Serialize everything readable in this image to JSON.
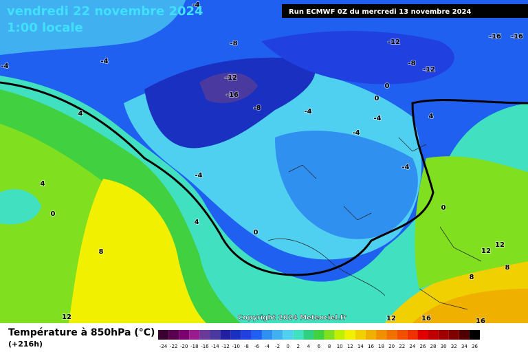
{
  "header": {
    "title": "vendredi 22 novembre 2024",
    "time": "1:00 locale",
    "run": "Run ECMWF 0Z du mercredi 13 novembre 2024"
  },
  "copyright": "Copyright 2024 Meteociel.fr",
  "legend": {
    "title": "Température à 850hPa (°C)",
    "lead": "(+216h)",
    "scale": [
      {
        "value": -24,
        "color": "#3a0030"
      },
      {
        "value": -22,
        "color": "#5a0050"
      },
      {
        "value": -20,
        "color": "#7a0070"
      },
      {
        "value": -18,
        "color": "#9a1a90"
      },
      {
        "value": -16,
        "color": "#6a3a9a"
      },
      {
        "value": -14,
        "color": "#4a3aa0"
      },
      {
        "value": -12,
        "color": "#2020a0"
      },
      {
        "value": -10,
        "color": "#1a30c0"
      },
      {
        "value": -8,
        "color": "#2040e0"
      },
      {
        "value": -6,
        "color": "#2060f0"
      },
      {
        "value": -4,
        "color": "#3090f0"
      },
      {
        "value": -2,
        "color": "#40b0f0"
      },
      {
        "value": 0,
        "color": "#50d0f0"
      },
      {
        "value": 2,
        "color": "#40e0c0"
      },
      {
        "value": 4,
        "color": "#30d080"
      },
      {
        "value": 6,
        "color": "#40d040"
      },
      {
        "value": 8,
        "color": "#80e020"
      },
      {
        "value": 10,
        "color": "#c0f000"
      },
      {
        "value": 12,
        "color": "#f0f000"
      },
      {
        "value": 14,
        "color": "#f0d000"
      },
      {
        "value": 16,
        "color": "#f0b000"
      },
      {
        "value": 18,
        "color": "#f09000"
      },
      {
        "value": 20,
        "color": "#f07000"
      },
      {
        "value": 22,
        "color": "#f05000"
      },
      {
        "value": 24,
        "color": "#f03000"
      },
      {
        "value": 26,
        "color": "#e00000"
      },
      {
        "value": 28,
        "color": "#c00000"
      },
      {
        "value": 30,
        "color": "#a00000"
      },
      {
        "value": 32,
        "color": "#800000"
      },
      {
        "value": 34,
        "color": "#500000"
      },
      {
        "value": 36,
        "color": "#000000"
      }
    ]
  },
  "contour_labels": [
    -4,
    -8,
    -12,
    -16,
    -16,
    -4,
    -4,
    -12,
    -16,
    -8,
    -8,
    -12,
    0,
    0,
    -4,
    -4,
    -4,
    4,
    4,
    -4,
    -4,
    4,
    0,
    0,
    4,
    0,
    8,
    12,
    12,
    8,
    8,
    12,
    12,
    16,
    16
  ]
}
